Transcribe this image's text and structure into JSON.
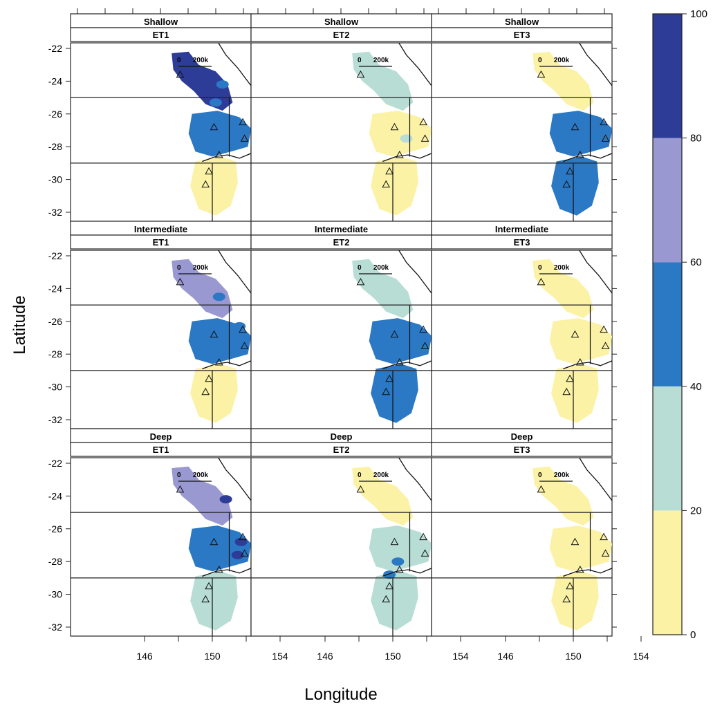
{
  "figure": {
    "xlabel": "Longitude",
    "ylabel": "Latitude",
    "x_ticks": [
      "146",
      "150",
      "154"
    ],
    "y_ticks": [
      "-22",
      "-24",
      "-26",
      "-28",
      "-30",
      "-32"
    ],
    "scale_label_0": "0",
    "scale_label_1": "200k"
  },
  "panels": [
    {
      "depth": "Shallow",
      "et": "ET1"
    },
    {
      "depth": "Shallow",
      "et": "ET2"
    },
    {
      "depth": "Shallow",
      "et": "ET3"
    },
    {
      "depth": "Intermediate",
      "et": "ET1"
    },
    {
      "depth": "Intermediate",
      "et": "ET2"
    },
    {
      "depth": "Intermediate",
      "et": "ET3"
    },
    {
      "depth": "Deep",
      "et": "ET1"
    },
    {
      "depth": "Deep",
      "et": "ET2"
    },
    {
      "depth": "Deep",
      "et": "ET3"
    }
  ],
  "legend": {
    "levels": [
      "0",
      "20",
      "40",
      "60",
      "80",
      "100"
    ],
    "colors": [
      "#fbf2a6",
      "#b8ddd4",
      "#2b78c4",
      "#9a98d0",
      "#2d3c96"
    ]
  },
  "colors": {
    "yellow": "#fbf2a6",
    "teal": "#b8ddd4",
    "blue": "#2b78c4",
    "lavender": "#9a98d0",
    "navy": "#2d3c96"
  }
}
